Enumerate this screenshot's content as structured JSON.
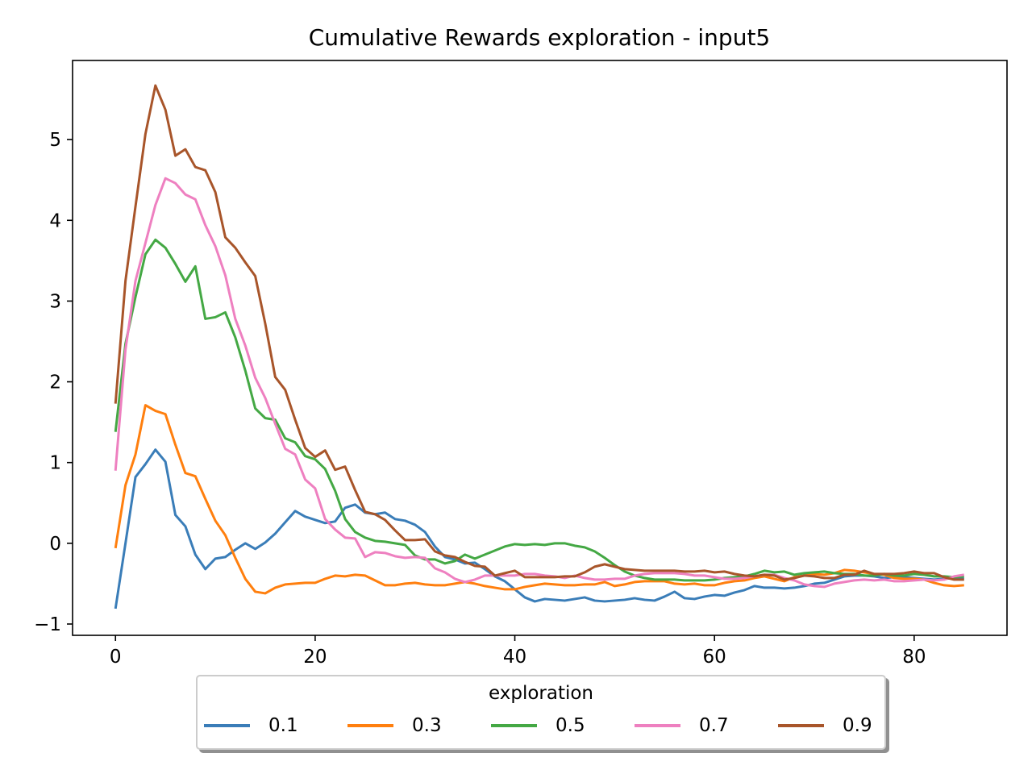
{
  "chart_data": {
    "type": "line",
    "title": "Cumulative Rewards exploration - input5",
    "xlabel": "",
    "ylabel": "",
    "xlim": [
      -4.3,
      89.3
    ],
    "ylim": [
      -1.14,
      5.98
    ],
    "xticks": [
      0,
      20,
      40,
      60,
      80
    ],
    "yticks": [
      -1,
      0,
      1,
      2,
      3,
      4,
      5
    ],
    "xtick_labels": [
      "0",
      "20",
      "40",
      "60",
      "80"
    ],
    "ytick_labels": [
      "−1",
      "0",
      "1",
      "2",
      "3",
      "4",
      "5"
    ],
    "grid": false,
    "legend": {
      "title": "exploration",
      "placement": "bottom-center",
      "columns": 5
    },
    "series": [
      {
        "name": "0.1",
        "color": "#3a7db8",
        "values": [
          -0.81,
          0.0,
          0.82,
          0.98,
          1.16,
          1.01,
          0.35,
          0.21,
          -0.14,
          -0.32,
          -0.19,
          -0.17,
          -0.08,
          0.0,
          -0.07,
          0.01,
          0.12,
          0.26,
          0.4,
          0.33,
          0.29,
          0.25,
          0.27,
          0.44,
          0.48,
          0.38,
          0.36,
          0.38,
          0.3,
          0.28,
          0.23,
          0.14,
          -0.04,
          -0.17,
          -0.2,
          -0.25,
          -0.24,
          -0.32,
          -0.41,
          -0.47,
          -0.57,
          -0.67,
          -0.72,
          -0.69,
          -0.7,
          -0.71,
          -0.69,
          -0.67,
          -0.71,
          -0.72,
          -0.71,
          -0.7,
          -0.68,
          -0.7,
          -0.71,
          -0.66,
          -0.6,
          -0.68,
          -0.69,
          -0.66,
          -0.64,
          -0.65,
          -0.61,
          -0.58,
          -0.53,
          -0.55,
          -0.55,
          -0.56,
          -0.55,
          -0.53,
          -0.5,
          -0.49,
          -0.45,
          -0.41,
          -0.4,
          -0.4,
          -0.41,
          -0.43,
          -0.42,
          -0.42,
          -0.43,
          -0.44,
          -0.45,
          -0.44,
          -0.43,
          -0.44
        ]
      },
      {
        "name": "0.3",
        "color": "#ff7f0e",
        "values": [
          -0.06,
          0.72,
          1.1,
          1.71,
          1.64,
          1.6,
          1.22,
          0.87,
          0.83,
          0.55,
          0.28,
          0.1,
          -0.18,
          -0.44,
          -0.6,
          -0.62,
          -0.55,
          -0.51,
          -0.5,
          -0.49,
          -0.49,
          -0.44,
          -0.4,
          -0.41,
          -0.39,
          -0.4,
          -0.46,
          -0.52,
          -0.52,
          -0.5,
          -0.49,
          -0.51,
          -0.52,
          -0.52,
          -0.5,
          -0.48,
          -0.5,
          -0.53,
          -0.55,
          -0.57,
          -0.57,
          -0.54,
          -0.52,
          -0.5,
          -0.51,
          -0.52,
          -0.52,
          -0.51,
          -0.51,
          -0.48,
          -0.53,
          -0.51,
          -0.48,
          -0.47,
          -0.47,
          -0.47,
          -0.5,
          -0.51,
          -0.5,
          -0.52,
          -0.52,
          -0.49,
          -0.47,
          -0.46,
          -0.43,
          -0.41,
          -0.44,
          -0.47,
          -0.42,
          -0.4,
          -0.38,
          -0.39,
          -0.37,
          -0.33,
          -0.34,
          -0.36,
          -0.38,
          -0.39,
          -0.43,
          -0.44,
          -0.44,
          -0.45,
          -0.49,
          -0.52,
          -0.53,
          -0.52
        ]
      },
      {
        "name": "0.5",
        "color": "#44a844",
        "values": [
          1.38,
          2.47,
          3.05,
          3.58,
          3.76,
          3.66,
          3.46,
          3.24,
          3.43,
          2.78,
          2.8,
          2.86,
          2.55,
          2.14,
          1.67,
          1.55,
          1.53,
          1.3,
          1.25,
          1.08,
          1.04,
          0.92,
          0.65,
          0.3,
          0.14,
          0.07,
          0.03,
          0.02,
          0.0,
          -0.02,
          -0.15,
          -0.2,
          -0.2,
          -0.25,
          -0.22,
          -0.14,
          -0.19,
          -0.14,
          -0.09,
          -0.04,
          -0.01,
          -0.02,
          -0.01,
          -0.02,
          0.0,
          0.0,
          -0.03,
          -0.05,
          -0.1,
          -0.18,
          -0.27,
          -0.35,
          -0.4,
          -0.43,
          -0.45,
          -0.45,
          -0.45,
          -0.46,
          -0.46,
          -0.46,
          -0.45,
          -0.43,
          -0.42,
          -0.41,
          -0.38,
          -0.34,
          -0.36,
          -0.35,
          -0.39,
          -0.37,
          -0.36,
          -0.35,
          -0.37,
          -0.38,
          -0.38,
          -0.4,
          -0.4,
          -0.38,
          -0.4,
          -0.4,
          -0.38,
          -0.39,
          -0.41,
          -0.41,
          -0.42,
          -0.41
        ]
      },
      {
        "name": "0.7",
        "color": "#ee80c0",
        "values": [
          0.9,
          2.4,
          3.25,
          3.72,
          4.19,
          4.52,
          4.46,
          4.32,
          4.26,
          3.94,
          3.68,
          3.32,
          2.78,
          2.45,
          2.05,
          1.8,
          1.48,
          1.17,
          1.1,
          0.79,
          0.68,
          0.3,
          0.17,
          0.07,
          0.06,
          -0.17,
          -0.11,
          -0.12,
          -0.16,
          -0.18,
          -0.17,
          -0.18,
          -0.31,
          -0.36,
          -0.44,
          -0.48,
          -0.45,
          -0.4,
          -0.4,
          -0.4,
          -0.4,
          -0.38,
          -0.38,
          -0.4,
          -0.41,
          -0.43,
          -0.4,
          -0.43,
          -0.45,
          -0.45,
          -0.44,
          -0.44,
          -0.4,
          -0.38,
          -0.37,
          -0.37,
          -0.37,
          -0.38,
          -0.4,
          -0.4,
          -0.42,
          -0.44,
          -0.44,
          -0.43,
          -0.41,
          -0.39,
          -0.39,
          -0.43,
          -0.46,
          -0.51,
          -0.53,
          -0.54,
          -0.5,
          -0.48,
          -0.46,
          -0.45,
          -0.46,
          -0.45,
          -0.47,
          -0.47,
          -0.46,
          -0.45,
          -0.46,
          -0.45,
          -0.41,
          -0.39
        ]
      },
      {
        "name": "0.9",
        "color": "#a8552a",
        "values": [
          1.73,
          3.25,
          4.17,
          5.07,
          5.67,
          5.37,
          4.8,
          4.88,
          4.66,
          4.62,
          4.35,
          3.79,
          3.66,
          3.48,
          3.31,
          2.72,
          2.06,
          1.9,
          1.53,
          1.18,
          1.07,
          1.15,
          0.91,
          0.95,
          0.66,
          0.39,
          0.36,
          0.29,
          0.16,
          0.04,
          0.04,
          0.05,
          -0.1,
          -0.15,
          -0.17,
          -0.23,
          -0.28,
          -0.29,
          -0.4,
          -0.37,
          -0.34,
          -0.42,
          -0.42,
          -0.42,
          -0.42,
          -0.41,
          -0.41,
          -0.36,
          -0.29,
          -0.26,
          -0.29,
          -0.32,
          -0.33,
          -0.34,
          -0.34,
          -0.34,
          -0.34,
          -0.35,
          -0.35,
          -0.34,
          -0.36,
          -0.35,
          -0.38,
          -0.4,
          -0.41,
          -0.39,
          -0.4,
          -0.45,
          -0.43,
          -0.4,
          -0.41,
          -0.43,
          -0.43,
          -0.39,
          -0.39,
          -0.34,
          -0.38,
          -0.38,
          -0.38,
          -0.37,
          -0.35,
          -0.37,
          -0.37,
          -0.42,
          -0.45,
          -0.45
        ]
      }
    ]
  }
}
